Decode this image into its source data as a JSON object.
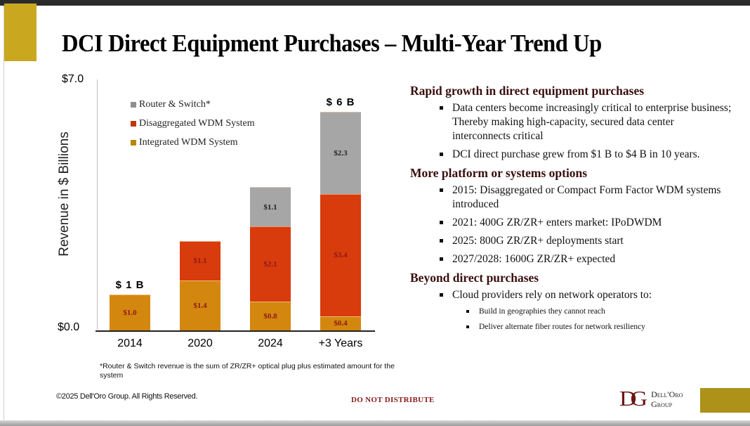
{
  "slide": {
    "title": "DCI Direct Equipment Purchases – Multi-Year Trend Up",
    "footnote": "*Router & Switch revenue is the sum of ZR/ZR+ optical plug plus estimated amount for the system",
    "copyright": "©2025 Dell'Oro Group. All Rights Reserved.",
    "confidential": "DO NOT DISTRIBUTE",
    "logo": {
      "mark": "DG",
      "line1": "Dell'Oro",
      "line2": "Group"
    }
  },
  "colors": {
    "router_switch": "#a6a6a6",
    "disaggregated_wdm": "#d83b0c",
    "integrated_wdm": "#d4870e",
    "segment_label_dark": "#8b1a1a",
    "heading": "#3a0e0e",
    "gold": "#c9a820"
  },
  "chart_data": {
    "type": "bar",
    "stacked": true,
    "title": "",
    "xlabel": "",
    "ylabel": "Revenue in $ Billions",
    "ylim": [
      0,
      7
    ],
    "yticks": [
      "$0.0",
      "$7.0"
    ],
    "categories": [
      "2014",
      "2020",
      "2024",
      "+3 Years"
    ],
    "series": [
      {
        "name": "Integrated WDM System",
        "key": "integrated_wdm",
        "values": [
          1.0,
          1.4,
          0.8,
          0.4
        ],
        "labels": [
          "$1.0",
          "$1.4",
          "$0.8",
          "$0.4"
        ]
      },
      {
        "name": "Disaggregated WDM System",
        "key": "disaggregated_wdm",
        "values": [
          0,
          1.1,
          2.1,
          3.4
        ],
        "labels": [
          "",
          "$1.1",
          "$2.1",
          "$3.4"
        ]
      },
      {
        "name": "Router & Switch*",
        "key": "router_switch",
        "values": [
          0,
          0,
          1.1,
          2.3
        ],
        "labels": [
          "",
          "",
          "$1.1",
          "$2.3"
        ]
      }
    ],
    "legend": [
      "Router & Switch*",
      "Disaggregated WDM System",
      "Integrated WDM System"
    ],
    "legend_position": "top-left",
    "annotations": [
      {
        "category": "2014",
        "text": "$ 1 B"
      },
      {
        "category": "+3 Years",
        "text": "$ 6 B"
      }
    ],
    "grid": false
  },
  "sections": [
    {
      "heading": "Rapid growth in direct equipment purchases",
      "bullets": [
        {
          "text": "Data centers become increasingly critical to enterprise business; Thereby making high-capacity, secured data center interconnects critical"
        },
        {
          "text": "DCI direct purchase grew from $1 B to $4 B in 10 years."
        }
      ]
    },
    {
      "heading": "More platform or systems options",
      "bullets": [
        {
          "text": "2015: Disaggregated or Compact Form Factor WDM systems introduced"
        },
        {
          "text": "2021: 400G ZR/ZR+ enters market: IPoDWDM"
        },
        {
          "text": "2025: 800G ZR/ZR+ deployments start"
        },
        {
          "text": "2027/2028: 1600G ZR/ZR+ expected"
        }
      ]
    },
    {
      "heading": "Beyond direct purchases",
      "bullets": [
        {
          "text": "Cloud providers rely on network operators to:"
        }
      ],
      "sub_bullets": [
        {
          "text": "Build in geographies they cannot reach"
        },
        {
          "text": "Deliver alternate fiber routes for network resiliency"
        }
      ]
    }
  ]
}
